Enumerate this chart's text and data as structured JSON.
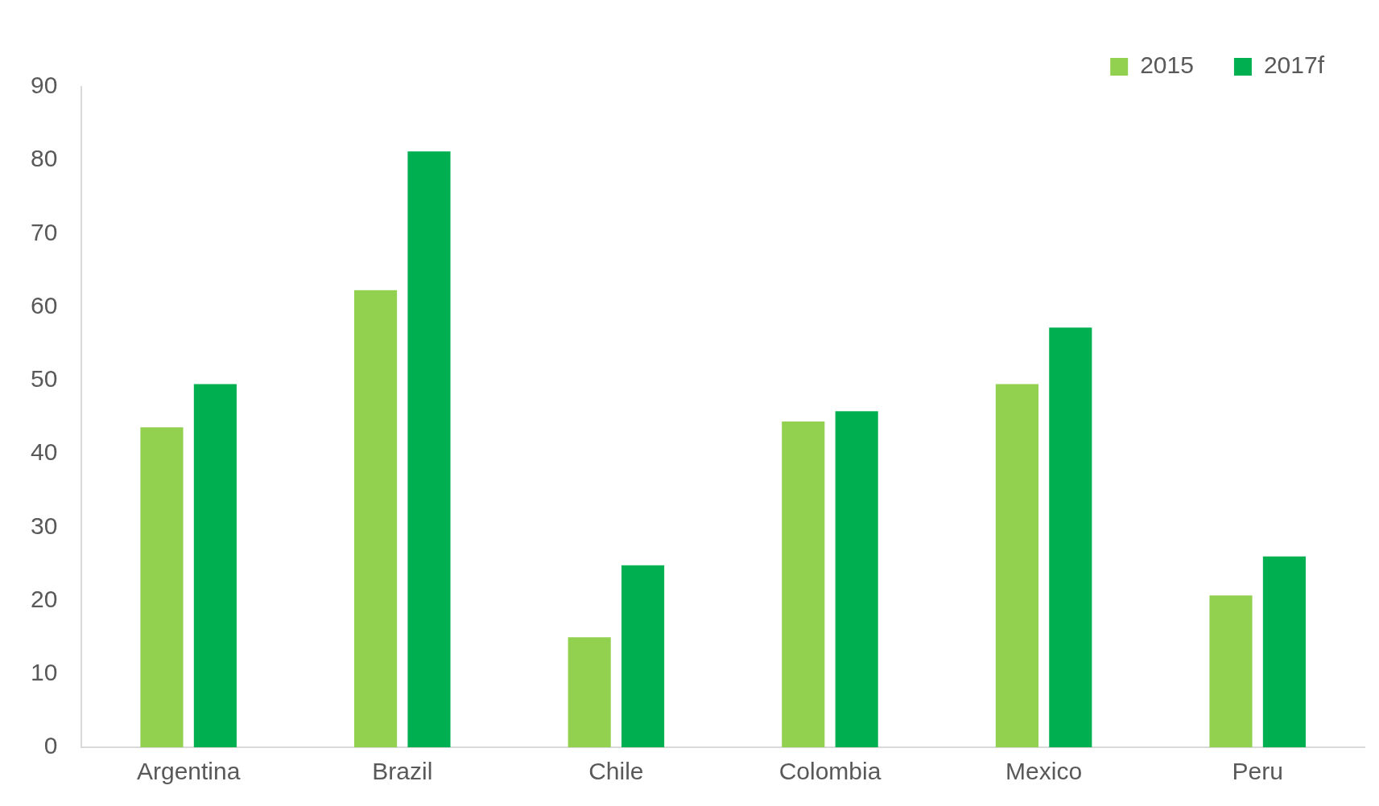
{
  "chart_data": {
    "type": "bar",
    "categories": [
      "Argentina",
      "Brazil",
      "Chile",
      "Colombia",
      "Mexico",
      "Peru"
    ],
    "series": [
      {
        "name": "2015",
        "color": "#92d050",
        "values": [
          43.6,
          62.3,
          15.0,
          44.4,
          49.5,
          20.7
        ]
      },
      {
        "name": "2017f",
        "color": "#00b050",
        "values": [
          49.5,
          81.2,
          24.8,
          45.8,
          57.2,
          26.0
        ]
      }
    ],
    "ylim": [
      0,
      90
    ],
    "yticks": [
      0,
      10,
      20,
      30,
      40,
      50,
      60,
      70,
      80,
      90
    ],
    "grid": false,
    "legend": "top right"
  }
}
